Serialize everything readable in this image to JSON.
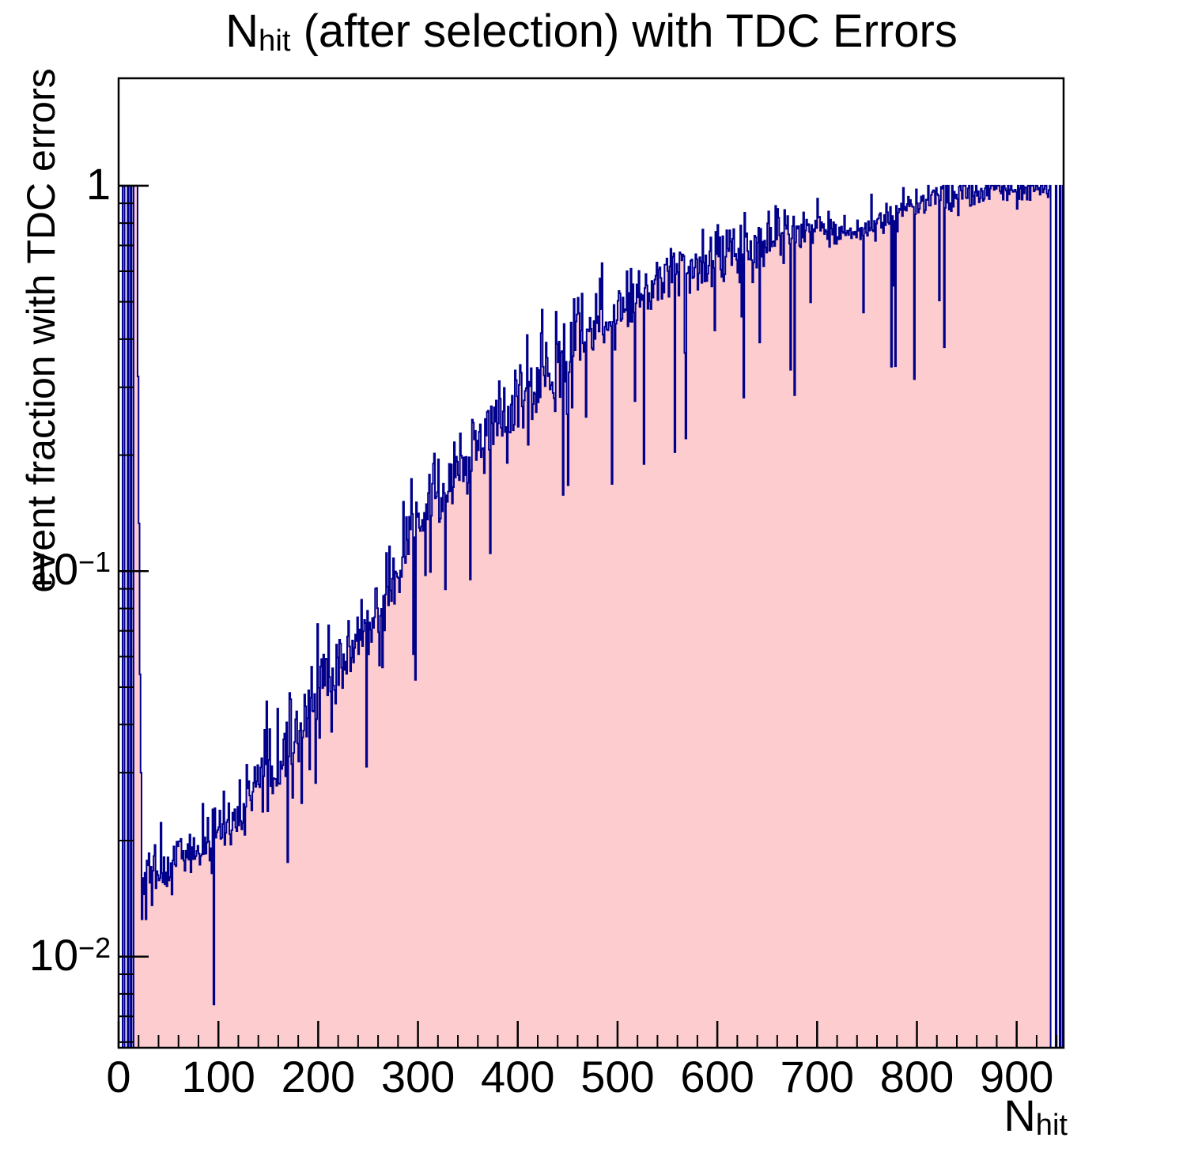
{
  "title": {
    "prefix": "N",
    "subscript": "hit",
    "suffix": " (after selection) with TDC Errors"
  },
  "axes": {
    "y_title": "event fraction with TDC errors",
    "x_title_prefix": "N",
    "x_title_subscript": "hit",
    "x_ticks": [
      {
        "value": 0,
        "label": "0"
      },
      {
        "value": 100,
        "label": "100"
      },
      {
        "value": 200,
        "label": "200"
      },
      {
        "value": 300,
        "label": "300"
      },
      {
        "value": 400,
        "label": "400"
      },
      {
        "value": 500,
        "label": "500"
      },
      {
        "value": 600,
        "label": "600"
      },
      {
        "value": 700,
        "label": "700"
      },
      {
        "value": 800,
        "label": "800"
      },
      {
        "value": 900,
        "label": "900"
      }
    ],
    "x_minor_step": 20,
    "y_ticks": [
      {
        "value": 1,
        "base": "1",
        "exp": ""
      },
      {
        "value": 0.1,
        "base": "10",
        "exp": "−1"
      },
      {
        "value": 0.01,
        "base": "10",
        "exp": "−2"
      }
    ],
    "x_range": [
      0,
      947
    ],
    "y_range_log": [
      0.0058,
      1.9
    ],
    "log_y": true
  },
  "chart_data": {
    "type": "histogram",
    "bin_width": 1,
    "n_bins": 947,
    "colors": {
      "fill": "#fdcccf",
      "line": "#00008c",
      "frame": "#000000",
      "text": "#000000",
      "background": "#ffffff"
    },
    "left_bins": [
      [
        0,
        0
      ],
      [
        1,
        0
      ],
      [
        2,
        0
      ],
      [
        3,
        0
      ],
      [
        4,
        1
      ],
      [
        5,
        1
      ],
      [
        6,
        0
      ],
      [
        7,
        0
      ],
      [
        8,
        0
      ],
      [
        9,
        1
      ],
      [
        10,
        0
      ],
      [
        11,
        0
      ],
      [
        12,
        1
      ],
      [
        13,
        0
      ],
      [
        14,
        0
      ],
      [
        15,
        1
      ],
      [
        16,
        1
      ],
      [
        17,
        1
      ],
      [
        18,
        1
      ],
      [
        19,
        0.32
      ],
      [
        20,
        0.133
      ],
      [
        21,
        0.054
      ],
      [
        22,
        0.03
      ],
      [
        23,
        0.0125
      ],
      [
        24,
        0.016
      ],
      [
        25,
        0.0145
      ],
      [
        26,
        0.0165
      ],
      [
        27,
        0.0125
      ]
    ],
    "right_bins": [
      [
        933,
        1
      ],
      [
        934,
        0
      ],
      [
        935,
        0
      ],
      [
        936,
        0
      ],
      [
        937,
        0
      ],
      [
        938,
        0
      ],
      [
        939,
        1
      ],
      [
        940,
        0
      ],
      [
        941,
        0
      ],
      [
        942,
        0
      ],
      [
        943,
        1
      ],
      [
        944,
        0
      ],
      [
        945,
        0
      ],
      [
        946,
        1
      ]
    ],
    "trend_points": [
      [
        28,
        0.0158
      ],
      [
        40,
        0.017
      ],
      [
        60,
        0.018
      ],
      [
        80,
        0.019
      ],
      [
        100,
        0.0215
      ],
      [
        120,
        0.024
      ],
      [
        140,
        0.028
      ],
      [
        160,
        0.033
      ],
      [
        180,
        0.039
      ],
      [
        200,
        0.047
      ],
      [
        220,
        0.056
      ],
      [
        240,
        0.067
      ],
      [
        260,
        0.082
      ],
      [
        280,
        0.1
      ],
      [
        300,
        0.13
      ],
      [
        320,
        0.155
      ],
      [
        340,
        0.185
      ],
      [
        360,
        0.215
      ],
      [
        380,
        0.245
      ],
      [
        400,
        0.28
      ],
      [
        420,
        0.32
      ],
      [
        440,
        0.36
      ],
      [
        460,
        0.39
      ],
      [
        480,
        0.42
      ],
      [
        500,
        0.46
      ],
      [
        520,
        0.51
      ],
      [
        540,
        0.55
      ],
      [
        560,
        0.59
      ],
      [
        580,
        0.62
      ],
      [
        600,
        0.65
      ],
      [
        620,
        0.68
      ],
      [
        640,
        0.71
      ],
      [
        660,
        0.73
      ],
      [
        680,
        0.76
      ],
      [
        700,
        0.78
      ],
      [
        720,
        0.76
      ],
      [
        740,
        0.76
      ],
      [
        760,
        0.82
      ],
      [
        780,
        0.88
      ],
      [
        800,
        0.91
      ],
      [
        820,
        0.93
      ],
      [
        840,
        0.95
      ],
      [
        860,
        0.96
      ],
      [
        880,
        0.975
      ],
      [
        900,
        0.985
      ],
      [
        932,
        0.995
      ]
    ],
    "noise": {
      "seed": 77,
      "sigma_dex_low": 0.04,
      "sigma_dex_mid": 0.055,
      "sigma_dex_midhigh": 0.04,
      "sigma_dex_high": 0.022,
      "downspike_prob": 0.055,
      "downspike_depth_dex": [
        0.1,
        0.45
      ],
      "upspike_prob": 0.035,
      "upspike_height_dex": [
        0.04,
        0.15
      ]
    },
    "clamp_max": 1.0
  }
}
